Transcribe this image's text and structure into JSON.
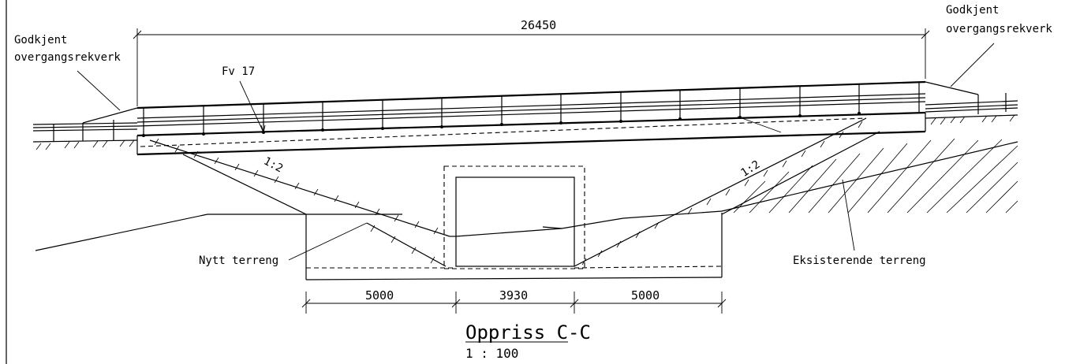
{
  "drawing": {
    "title": "Oppriss C-C",
    "scale": "1 : 100",
    "labels": {
      "guardrail_left_1": "Godkjent",
      "guardrail_left_2": "overgangsrekverk",
      "guardrail_right_1": "Godkjent",
      "guardrail_right_2": "overgangsrekverk",
      "road": "Fv 17",
      "new_terrain": "Nytt terreng",
      "existing_terrain": "Eksisterende terreng",
      "slope_left": "1:2",
      "slope_right": "1:2"
    },
    "dimensions": {
      "overall": "26450",
      "left_span": "5000",
      "middle_span": "3930",
      "right_span": "5000"
    }
  }
}
